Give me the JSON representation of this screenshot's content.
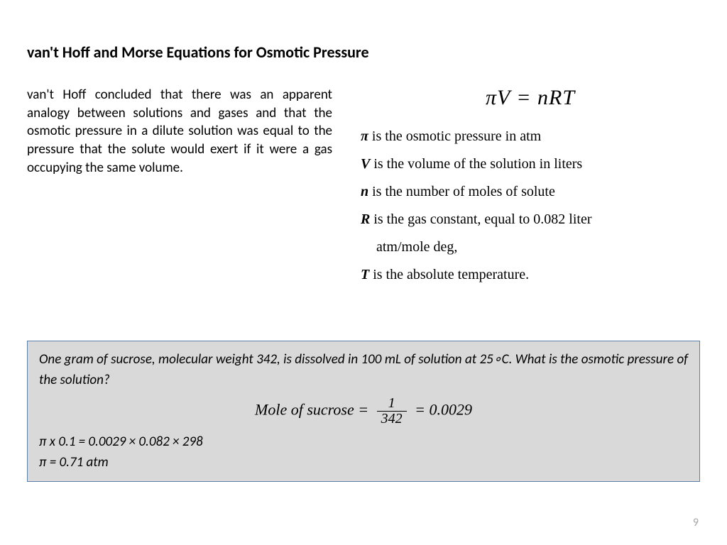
{
  "title": "van't Hoff and Morse Equations for Osmotic Pressure",
  "intro": "van't Hoff concluded that there was an apparent analogy between solutions and gases and that the osmotic pressure in a dilute solution was equal to the pressure that the solute would exert if it were a gas occupying the same volume.",
  "equation": "πV = nRT",
  "defs": {
    "pi": {
      "sym": "π",
      "text": " is the osmotic pressure in atm"
    },
    "v": {
      "sym": "V",
      "text": " is the volume of the solution in liters"
    },
    "n": {
      "sym": "n",
      "text": " is the number of moles of solute"
    },
    "r": {
      "sym": "R",
      "text": " is the gas constant, equal to 0.082 liter"
    },
    "r2": {
      "text": "atm/mole deg,"
    },
    "t": {
      "sym": "T",
      "text": " is the absolute temperature."
    }
  },
  "example": {
    "prompt": "One gram of sucrose, molecular weight 342, is dissolved in 100 mL of solution at 25∘C. What is the osmotic pressure of the solution?",
    "mole_label": "Mole of sucrose =",
    "frac_num": "1",
    "frac_den": "342",
    "mole_result": "= 0.0029",
    "calc_line": "π x 0.1 = 0.0029 × 0.082 × 298",
    "answer": "π = 0.71 atm"
  },
  "page_number": "9",
  "colors": {
    "box_bg": "#d9d9d9",
    "box_border": "#5b7fa6",
    "page_num": "#a6a6a6"
  }
}
